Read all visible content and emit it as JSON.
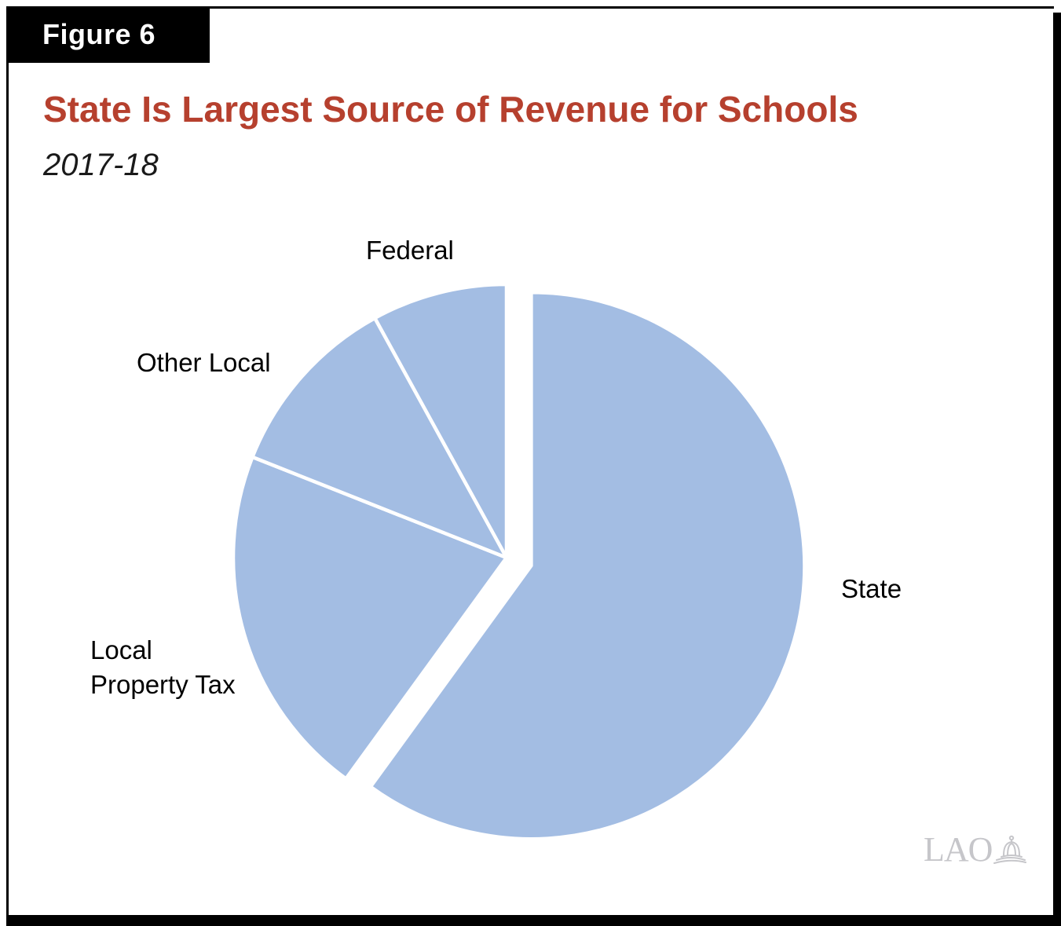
{
  "figure": {
    "label": "Figure 6"
  },
  "header": {
    "title": "State Is Largest Source of Revenue for Schools",
    "subtitle": "2017-18"
  },
  "logo": {
    "text": "LAO",
    "icon": "capitol-dome-icon"
  },
  "colors": {
    "slice_fill": "#A3BDE3",
    "slice_gap": "#FFFFFF",
    "title_red": "#B6402E",
    "figure_box_bg": "#000000",
    "figure_box_text": "#FFFFFF",
    "logo_gray": "#C6C6CA",
    "label_text": "#000000"
  },
  "chart_data": {
    "type": "pie",
    "title": "State Is Largest Source of Revenue for Schools",
    "subtitle": "2017-18",
    "legend": false,
    "labels_outside": true,
    "single_color_slices": true,
    "color": "#A3BDE3",
    "start_angle_deg": 0,
    "direction": "clockwise",
    "values_are_percent_shares_estimated_from_angles": true,
    "slices": [
      {
        "label": "State",
        "value": 60,
        "exploded": true
      },
      {
        "label": "Local Property Tax",
        "value": 21,
        "exploded": false
      },
      {
        "label": "Other Local",
        "value": 11,
        "exploded": false
      },
      {
        "label": "Federal",
        "value": 8,
        "exploded": false
      }
    ]
  }
}
